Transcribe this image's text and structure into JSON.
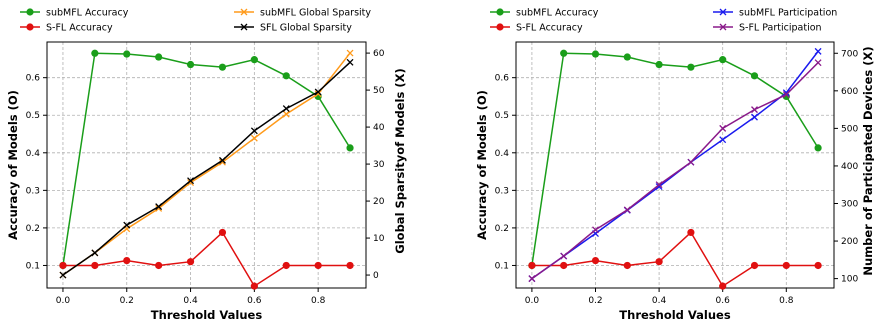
{
  "chart_data": [
    {
      "type": "line",
      "title": "",
      "xlabel": "Threshold Values",
      "ylabel": "Accuracy of Models (O)",
      "y2label": "Global Sparsityof Models (X)",
      "xlim": [
        -0.05,
        0.95
      ],
      "ylim": [
        0.04,
        0.695
      ],
      "y2lim": [
        -3.5,
        63
      ],
      "xticks": [
        "0.0",
        "0.2",
        "0.4",
        "0.6",
        "0.8"
      ],
      "yticks": [
        "0.1",
        "0.2",
        "0.3",
        "0.4",
        "0.5",
        "0.6"
      ],
      "y2ticks": [
        "0",
        "10",
        "20",
        "30",
        "40",
        "50",
        "60"
      ],
      "grid": true,
      "legend_left": "top-left (outside)",
      "legend_right": "top-right (outside)",
      "series": [
        {
          "name": "subMFL Accuracy",
          "axis": "left",
          "color": "#1a9e1a",
          "marker": "o",
          "x": [
            0.0,
            0.1,
            0.2,
            0.3,
            0.4,
            0.5,
            0.6,
            0.7,
            0.8,
            0.9
          ],
          "values": [
            0.1,
            0.665,
            0.663,
            0.655,
            0.635,
            0.628,
            0.648,
            0.605,
            0.55,
            0.413
          ]
        },
        {
          "name": "S-FL Accuracy",
          "axis": "left",
          "color": "#e01010",
          "marker": "o",
          "x": [
            0.0,
            0.1,
            0.2,
            0.3,
            0.4,
            0.5,
            0.6,
            0.7,
            0.8,
            0.9
          ],
          "values": [
            0.1,
            0.1,
            0.113,
            0.1,
            0.11,
            0.188,
            0.045,
            0.1,
            0.1,
            0.1
          ]
        },
        {
          "name": "subMFL Global Sparsity",
          "axis": "right",
          "color": "#ff9a1a",
          "marker": "x",
          "x": [
            0.0,
            0.1,
            0.2,
            0.3,
            0.4,
            0.5,
            0.6,
            0.7,
            0.8,
            0.9
          ],
          "values": [
            0,
            6,
            12.5,
            18,
            25,
            30.5,
            37,
            43.5,
            49,
            60
          ]
        },
        {
          "name": "SFL Global Sparsity",
          "axis": "right",
          "color": "#000000",
          "marker": "x",
          "x": [
            0.0,
            0.1,
            0.2,
            0.3,
            0.4,
            0.5,
            0.6,
            0.7,
            0.8,
            0.9
          ],
          "values": [
            0,
            6,
            13.5,
            18.5,
            25.5,
            31,
            39,
            45,
            49.5,
            57.5
          ]
        }
      ]
    },
    {
      "type": "line",
      "title": "",
      "xlabel": "Threshold Values",
      "ylabel": "Accuracy of Models (O)",
      "y2label": "Number of Participated Devices (X)",
      "xlim": [
        -0.05,
        0.95
      ],
      "ylim": [
        0.04,
        0.695
      ],
      "y2lim": [
        75,
        730
      ],
      "xticks": [
        "0.0",
        "0.2",
        "0.4",
        "0.6",
        "0.8"
      ],
      "yticks": [
        "0.1",
        "0.2",
        "0.3",
        "0.4",
        "0.5",
        "0.6"
      ],
      "y2ticks": [
        "100",
        "200",
        "300",
        "400",
        "500",
        "600",
        "700"
      ],
      "grid": true,
      "legend_left": "top-left (outside)",
      "legend_right": "top-right (outside)",
      "series": [
        {
          "name": "subMFL Accuracy",
          "axis": "left",
          "color": "#1a9e1a",
          "marker": "o",
          "x": [
            0.0,
            0.1,
            0.2,
            0.3,
            0.4,
            0.5,
            0.6,
            0.7,
            0.8,
            0.9
          ],
          "values": [
            0.1,
            0.665,
            0.663,
            0.655,
            0.635,
            0.628,
            0.648,
            0.605,
            0.55,
            0.413
          ]
        },
        {
          "name": "S-FL Accuracy",
          "axis": "left",
          "color": "#e01010",
          "marker": "o",
          "x": [
            0.0,
            0.1,
            0.2,
            0.3,
            0.4,
            0.5,
            0.6,
            0.7,
            0.8,
            0.9
          ],
          "values": [
            0.1,
            0.1,
            0.113,
            0.1,
            0.11,
            0.188,
            0.045,
            0.1,
            0.1,
            0.1
          ]
        },
        {
          "name": "subMFL Participation",
          "axis": "right",
          "color": "#1a1aee",
          "marker": "x",
          "x": [
            0.0,
            0.1,
            0.2,
            0.3,
            0.4,
            0.5,
            0.6,
            0.7,
            0.8,
            0.9
          ],
          "values": [
            100,
            160,
            220,
            282,
            345,
            410,
            470,
            530,
            595,
            705
          ]
        },
        {
          "name": "S-FL Participation",
          "axis": "right",
          "color": "#8a1a8a",
          "marker": "x",
          "x": [
            0.0,
            0.1,
            0.2,
            0.3,
            0.4,
            0.5,
            0.6,
            0.7,
            0.8,
            0.9
          ],
          "values": [
            100,
            160,
            230,
            283,
            350,
            410,
            500,
            550,
            590,
            675
          ]
        }
      ]
    }
  ]
}
